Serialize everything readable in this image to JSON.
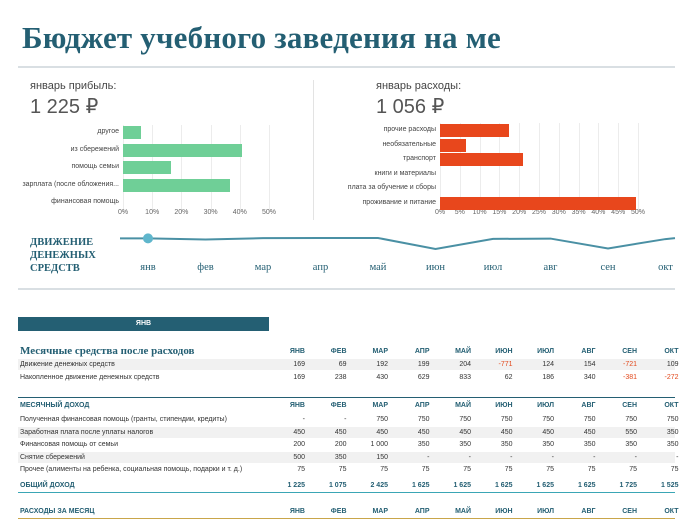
{
  "title": "Бюджет учебного заведения на ме",
  "income_summary": {
    "label": "январь прибыль:",
    "value": "1 225 ₽"
  },
  "expense_summary": {
    "label": "январь расходы:",
    "value": "1 056 ₽"
  },
  "colors": {
    "income_bar": "#6fcf97",
    "expense_bar": "#e8471c",
    "accent": "#245f73",
    "negative": "#e2491c",
    "line": "#4a90a4"
  },
  "chart_data": [
    {
      "type": "bar",
      "orientation": "horizontal",
      "categories": [
        "другое",
        "из сбережений",
        "помощь семьи",
        "зарплата (после обложения...",
        "финансовая помощь"
      ],
      "values": [
        6.1,
        40.8,
        16.3,
        36.7,
        0
      ],
      "xlim": [
        0,
        50
      ],
      "xticks": [
        "0%",
        "10%",
        "20%",
        "30%",
        "40%",
        "50%"
      ],
      "grid": true
    },
    {
      "type": "bar",
      "orientation": "horizontal",
      "categories": [
        "прочие расходы",
        "необязательные",
        "транспорт",
        "книги и материалы",
        "плата за обучение и сборы",
        "проживание и питание"
      ],
      "values": [
        17.5,
        6.5,
        21,
        0,
        0,
        49.5
      ],
      "xlim": [
        0,
        50
      ],
      "xticks": [
        "0%",
        "5%",
        "10%",
        "15%",
        "20%",
        "25%",
        "30%",
        "35%",
        "40%",
        "45%",
        "50%"
      ],
      "grid": true
    },
    {
      "type": "line",
      "title": "ДВИЖЕНИЕ ДЕНЕЖНЫХ СРЕДСТВ",
      "categories": [
        "янв",
        "фев",
        "мар",
        "апр",
        "май",
        "июн",
        "июл",
        "авг",
        "сен",
        "окт"
      ],
      "values": [
        169,
        69,
        192,
        199,
        204,
        -771,
        124,
        154,
        -721,
        109
      ],
      "highlight_index": 0
    }
  ],
  "flow": {
    "title_lines": [
      "ДВИЖЕНИЕ",
      "ДЕНЕЖНЫХ",
      "СРЕДСТВ"
    ],
    "months": [
      "янв",
      "фев",
      "мар",
      "апр",
      "май",
      "июн",
      "июл",
      "авг",
      "сен",
      "окт"
    ]
  },
  "month_selector": {
    "value": "ЯНВ"
  },
  "table": {
    "title": "Месячные средства после расходов",
    "months": [
      "ЯНВ",
      "ФЕВ",
      "МАР",
      "АПР",
      "МАЙ",
      "ИЮН",
      "ИЮЛ",
      "АВГ",
      "СЕН",
      "ОКТ"
    ],
    "summary_rows": [
      {
        "label": "Движение денежных средств",
        "values": [
          "169",
          "69",
          "192",
          "199",
          "204",
          "-771",
          "124",
          "154",
          "-721",
          "109"
        ]
      },
      {
        "label": "Накопленное движение денежных средств",
        "values": [
          "169",
          "238",
          "430",
          "629",
          "833",
          "62",
          "186",
          "340",
          "-381",
          "-272"
        ]
      }
    ],
    "income_header": "МЕСЯЧНЫЙ ДОХОД",
    "income_rows": [
      {
        "label": "Полученная финансовая помощь (гранты, стипендии, кредиты)",
        "values": [
          "-",
          "-",
          "750",
          "750",
          "750",
          "750",
          "750",
          "750",
          "750",
          "750"
        ]
      },
      {
        "label": "Заработная плата после уплаты налогов",
        "values": [
          "450",
          "450",
          "450",
          "450",
          "450",
          "450",
          "450",
          "450",
          "550",
          "350"
        ]
      },
      {
        "label": "Финансовая помощь от семьи",
        "values": [
          "200",
          "200",
          "1 000",
          "350",
          "350",
          "350",
          "350",
          "350",
          "350",
          "350"
        ]
      },
      {
        "label": "Снятие сбережений",
        "values": [
          "500",
          "350",
          "150",
          "-",
          "-",
          "-",
          "-",
          "-",
          "-",
          "-"
        ]
      },
      {
        "label": "Прочее (алименты на ребенка, социальная помощь, подарки и т. д.)",
        "values": [
          "75",
          "75",
          "75",
          "75",
          "75",
          "75",
          "75",
          "75",
          "75",
          "75"
        ]
      }
    ],
    "income_total": {
      "label": "ОБЩИЙ ДОХОД",
      "values": [
        "1 225",
        "1 075",
        "2 425",
        "1 625",
        "1 625",
        "1 625",
        "1 625",
        "1 625",
        "1 725",
        "1 525"
      ]
    },
    "expense_header": "РАСХОДЫ ЗА МЕСЯЦ"
  }
}
